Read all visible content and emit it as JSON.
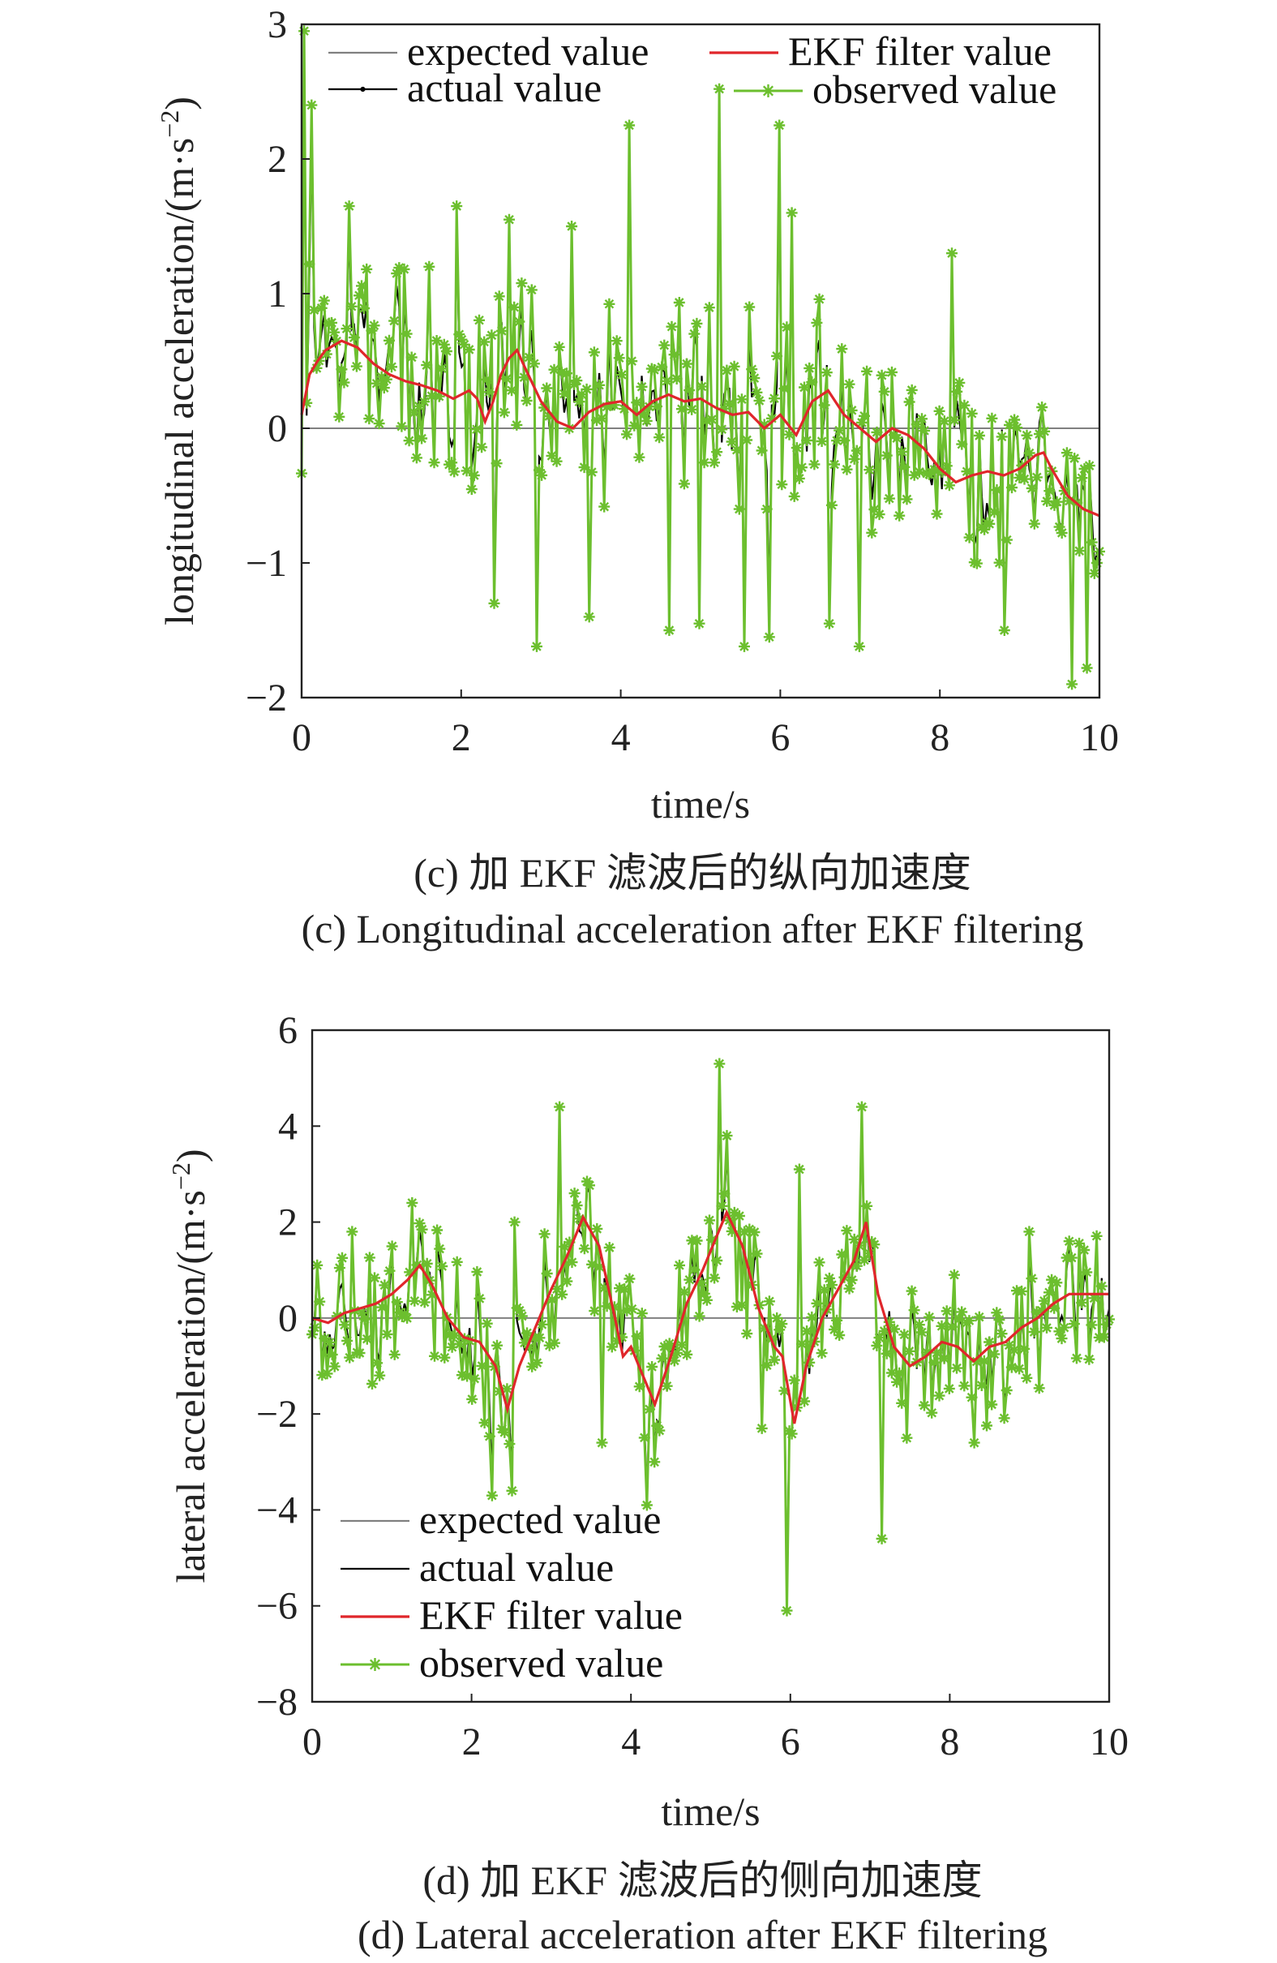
{
  "colors": {
    "expected": "#808080",
    "actual": "#000000",
    "ekf": "#e0262b",
    "observed": "#6cbf2e",
    "frame": "#222222"
  },
  "chart_data": [
    {
      "type": "line",
      "xlabel": "time/s",
      "ylabel": "longitudinal acceleration/(m·s",
      "ylabel_sup": "−2",
      "ylabel_close": ")",
      "xlim": [
        0,
        10
      ],
      "ylim": [
        -2,
        3
      ],
      "xticks": [
        0,
        2,
        4,
        6,
        8,
        10
      ],
      "yticks": [
        -2,
        -1,
        0,
        1,
        2,
        3
      ],
      "ytick_labels": [
        "−2",
        "−1",
        "0",
        "1",
        "2",
        "3"
      ],
      "xtick_labels": [
        "0",
        "2",
        "4",
        "6",
        "8",
        "10"
      ],
      "legend_position": "top",
      "legend": [
        "expected value",
        "actual value",
        "EKF filter value",
        "observed value"
      ],
      "caption_cn": "(c) 加 EKF 滤波后的纵向加速度",
      "caption_en": "(c) Longitudinal acceleration after EKF filtering",
      "series": [
        {
          "name": "expected value",
          "x": [
            0,
            10
          ],
          "y": [
            0,
            0
          ]
        },
        {
          "name": "EKF filter value",
          "x": [
            0.0,
            0.1,
            0.2,
            0.3,
            0.5,
            0.7,
            0.9,
            1.1,
            1.3,
            1.5,
            1.7,
            1.9,
            2.1,
            2.2,
            2.3,
            2.4,
            2.5,
            2.6,
            2.7,
            2.8,
            3.0,
            3.2,
            3.4,
            3.6,
            3.8,
            4.0,
            4.2,
            4.4,
            4.6,
            4.8,
            5.0,
            5.2,
            5.4,
            5.6,
            5.8,
            6.0,
            6.2,
            6.4,
            6.6,
            6.8,
            7.0,
            7.2,
            7.4,
            7.6,
            7.8,
            8.0,
            8.2,
            8.4,
            8.6,
            8.8,
            9.0,
            9.2,
            9.3,
            9.4,
            9.6,
            9.8,
            10.0
          ],
          "y": [
            0.1,
            0.4,
            0.5,
            0.58,
            0.65,
            0.6,
            0.48,
            0.4,
            0.35,
            0.32,
            0.28,
            0.22,
            0.28,
            0.22,
            0.05,
            0.2,
            0.4,
            0.52,
            0.58,
            0.45,
            0.2,
            0.05,
            0.0,
            0.12,
            0.18,
            0.2,
            0.1,
            0.2,
            0.25,
            0.2,
            0.22,
            0.15,
            0.1,
            0.12,
            0.0,
            0.1,
            -0.05,
            0.2,
            0.28,
            0.1,
            0.0,
            -0.1,
            0.0,
            -0.05,
            -0.15,
            -0.3,
            -0.4,
            -0.35,
            -0.32,
            -0.35,
            -0.3,
            -0.2,
            -0.18,
            -0.3,
            -0.5,
            -0.6,
            -0.65
          ]
        },
        {
          "name": "actual value",
          "x": [],
          "y": []
        },
        {
          "name": "observed value",
          "x": [],
          "y": []
        }
      ],
      "observed_peaks": [
        {
          "x": 0.02,
          "y": 2.95
        },
        {
          "x": 0.12,
          "y": 2.4
        },
        {
          "x": 0.6,
          "y": 1.65
        },
        {
          "x": 1.2,
          "y": 1.15
        },
        {
          "x": 1.6,
          "y": 1.2
        },
        {
          "x": 1.95,
          "y": 1.65
        },
        {
          "x": 2.4,
          "y": -1.3
        },
        {
          "x": 2.6,
          "y": 1.55
        },
        {
          "x": 2.95,
          "y": -1.62
        },
        {
          "x": 3.4,
          "y": 1.5
        },
        {
          "x": 3.6,
          "y": -1.4
        },
        {
          "x": 4.1,
          "y": 2.25
        },
        {
          "x": 4.6,
          "y": -1.5
        },
        {
          "x": 5.0,
          "y": -1.45
        },
        {
          "x": 5.25,
          "y": 2.52
        },
        {
          "x": 5.55,
          "y": -1.62
        },
        {
          "x": 5.85,
          "y": -1.55
        },
        {
          "x": 6.0,
          "y": 2.25
        },
        {
          "x": 6.15,
          "y": 1.6
        },
        {
          "x": 6.6,
          "y": -1.45
        },
        {
          "x": 7.0,
          "y": -1.62
        },
        {
          "x": 8.15,
          "y": 1.3
        },
        {
          "x": 8.8,
          "y": -1.5
        },
        {
          "x": 9.65,
          "y": -1.9
        },
        {
          "x": 9.85,
          "y": -1.78
        },
        {
          "x": 9.98,
          "y": -1.0
        }
      ]
    },
    {
      "type": "line",
      "xlabel": "time/s",
      "ylabel": "lateral acceleration/(m·s",
      "ylabel_sup": "−2",
      "ylabel_close": ")",
      "xlim": [
        0,
        10
      ],
      "ylim": [
        -8,
        6
      ],
      "xticks": [
        0,
        2,
        4,
        6,
        8,
        10
      ],
      "yticks": [
        -8,
        -6,
        -4,
        -2,
        0,
        2,
        4,
        6
      ],
      "ytick_labels": [
        "−8",
        "−6",
        "−4",
        "−2",
        "0",
        "2",
        "4",
        "6"
      ],
      "xtick_labels": [
        "0",
        "2",
        "4",
        "6",
        "8",
        "10"
      ],
      "legend_position": "bottom-left",
      "legend": [
        "expected value",
        "actual value",
        "EKF filter value",
        "observed value"
      ],
      "caption_cn": "(d) 加 EKF 滤波后的侧向加速度",
      "caption_en": "(d) Lateral acceleration after EKF filtering",
      "series": [
        {
          "name": "expected value",
          "x": [
            0,
            10
          ],
          "y": [
            0,
            0
          ]
        },
        {
          "name": "EKF filter value",
          "x": [
            0.0,
            0.2,
            0.4,
            0.6,
            0.8,
            1.0,
            1.2,
            1.35,
            1.5,
            1.7,
            1.9,
            2.1,
            2.3,
            2.45,
            2.6,
            2.8,
            3.0,
            3.2,
            3.4,
            3.6,
            3.8,
            3.9,
            4.0,
            4.1,
            4.3,
            4.5,
            4.7,
            4.9,
            5.1,
            5.2,
            5.4,
            5.6,
            5.8,
            5.9,
            6.05,
            6.2,
            6.4,
            6.6,
            6.8,
            6.95,
            7.1,
            7.3,
            7.5,
            7.7,
            7.9,
            8.1,
            8.3,
            8.5,
            8.7,
            8.9,
            9.1,
            9.3,
            9.5,
            9.7,
            10.0
          ],
          "y": [
            0.0,
            -0.1,
            0.1,
            0.2,
            0.3,
            0.5,
            0.8,
            1.1,
            0.7,
            0.0,
            -0.4,
            -0.5,
            -1.0,
            -1.9,
            -1.0,
            -0.2,
            0.6,
            1.3,
            2.1,
            1.5,
            0.0,
            -0.8,
            -0.6,
            -1.0,
            -1.8,
            -0.8,
            0.3,
            1.0,
            1.8,
            2.2,
            1.5,
            0.2,
            -0.6,
            -0.8,
            -2.2,
            -1.0,
            0.0,
            0.6,
            1.2,
            2.0,
            0.5,
            -0.6,
            -1.0,
            -0.8,
            -0.5,
            -0.6,
            -0.9,
            -0.6,
            -0.5,
            -0.2,
            0.0,
            0.3,
            0.5,
            0.5,
            0.5
          ]
        },
        {
          "name": "actual value",
          "x": [],
          "y": []
        },
        {
          "name": "observed value",
          "x": [],
          "y": []
        }
      ],
      "observed_peaks": [
        {
          "x": 0.05,
          "y": 1.1
        },
        {
          "x": 0.5,
          "y": 1.8
        },
        {
          "x": 1.25,
          "y": 2.4
        },
        {
          "x": 2.25,
          "y": -3.7
        },
        {
          "x": 2.5,
          "y": -3.6
        },
        {
          "x": 2.55,
          "y": 2.0
        },
        {
          "x": 3.1,
          "y": 4.4
        },
        {
          "x": 3.3,
          "y": 2.6
        },
        {
          "x": 3.65,
          "y": -2.6
        },
        {
          "x": 4.2,
          "y": -3.9
        },
        {
          "x": 5.1,
          "y": 5.3
        },
        {
          "x": 5.2,
          "y": 3.8
        },
        {
          "x": 5.65,
          "y": -2.3
        },
        {
          "x": 5.95,
          "y": -6.1
        },
        {
          "x": 6.1,
          "y": 3.1
        },
        {
          "x": 6.9,
          "y": 4.4
        },
        {
          "x": 7.15,
          "y": -4.6
        },
        {
          "x": 7.45,
          "y": -2.5
        },
        {
          "x": 8.3,
          "y": -2.6
        },
        {
          "x": 9.0,
          "y": 1.8
        },
        {
          "x": 9.5,
          "y": 1.6
        },
        {
          "x": 9.95,
          "y": -0.4
        }
      ]
    }
  ]
}
